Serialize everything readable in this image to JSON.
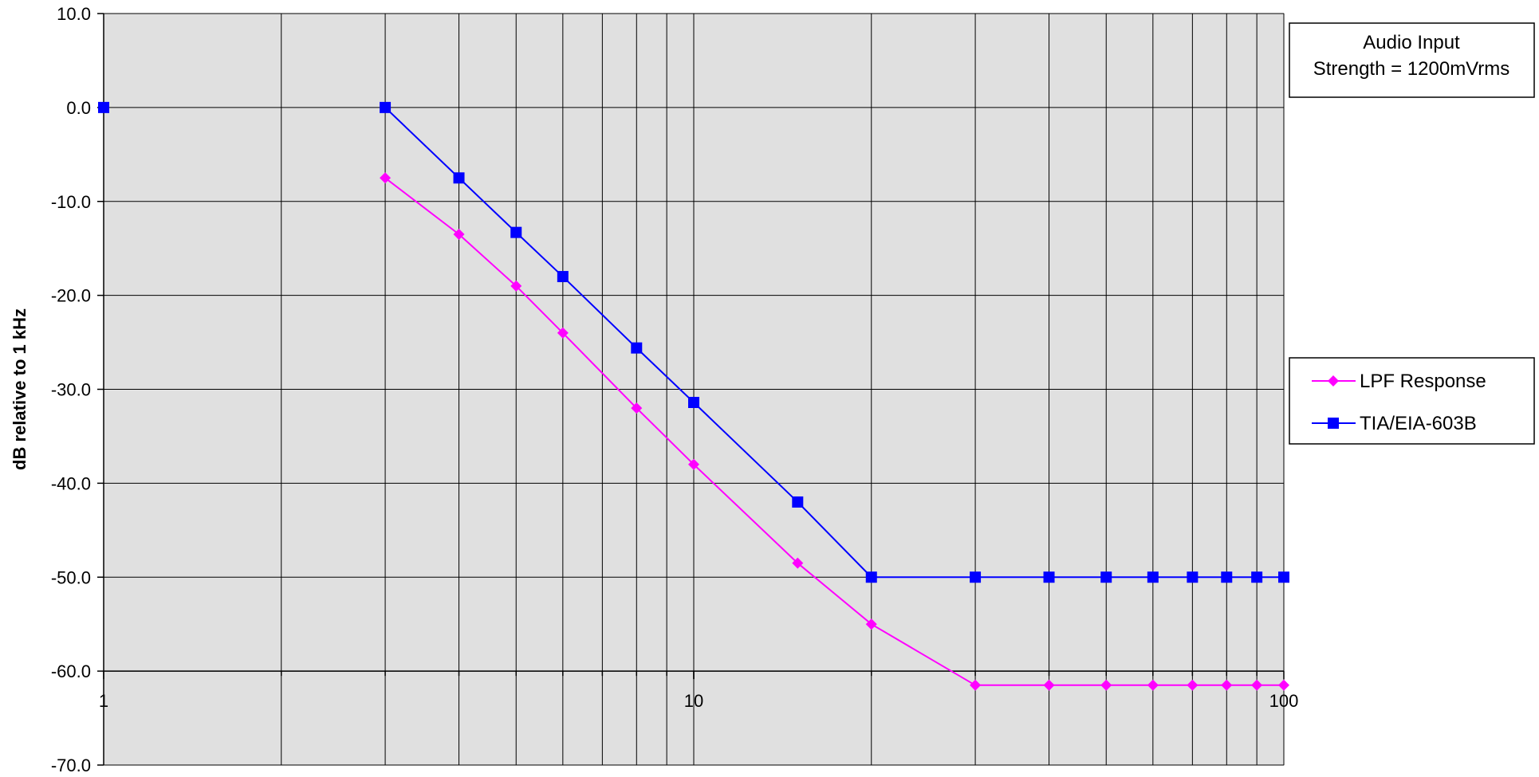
{
  "chart_data": {
    "type": "line",
    "xscale": "log",
    "xlim": [
      1,
      100
    ],
    "ylim": [
      -70,
      10
    ],
    "ylabel": "dB relative to 1 kHz",
    "xlabel": "",
    "y_ticks": [
      "10.0",
      "0.0",
      "-10.0",
      "-20.0",
      "-30.0",
      "-40.0",
      "-50.0",
      "-60.0",
      "-70.0"
    ],
    "x_ticks": [
      "1",
      "10",
      "100"
    ],
    "grid": true,
    "x_axis_crossing": -60,
    "annotation": [
      "Audio Input",
      "Strength = 1200mVrms"
    ],
    "legend_position": "right",
    "series": [
      {
        "name": "LPF Response",
        "color": "#ff00ff",
        "marker": "diamond",
        "points": [
          {
            "x": 3,
            "y": -7.5
          },
          {
            "x": 4,
            "y": -13.5
          },
          {
            "x": 5,
            "y": -19
          },
          {
            "x": 6,
            "y": -24
          },
          {
            "x": 8,
            "y": -32
          },
          {
            "x": 10,
            "y": -38
          },
          {
            "x": 15,
            "y": -48.5
          },
          {
            "x": 20,
            "y": -55
          },
          {
            "x": 30,
            "y": -61.5
          },
          {
            "x": 40,
            "y": -61.5
          },
          {
            "x": 50,
            "y": -61.5
          },
          {
            "x": 60,
            "y": -61.5
          },
          {
            "x": 70,
            "y": -61.5
          },
          {
            "x": 80,
            "y": -61.5
          },
          {
            "x": 90,
            "y": -61.5
          },
          {
            "x": 100,
            "y": -61.5
          }
        ]
      },
      {
        "name": "TIA/EIA-603B",
        "color": "#0000ff",
        "marker": "square",
        "points": [
          {
            "x": 1,
            "y": 0
          },
          {
            "x": 3,
            "y": 0
          },
          {
            "x": 4,
            "y": -7.5
          },
          {
            "x": 5,
            "y": -13.3
          },
          {
            "x": 6,
            "y": -18
          },
          {
            "x": 8,
            "y": -25.6
          },
          {
            "x": 10,
            "y": -31.4
          },
          {
            "x": 15,
            "y": -42
          },
          {
            "x": 20,
            "y": -50
          },
          {
            "x": 30,
            "y": -50
          },
          {
            "x": 40,
            "y": -50
          },
          {
            "x": 50,
            "y": -50
          },
          {
            "x": 60,
            "y": -50
          },
          {
            "x": 70,
            "y": -50
          },
          {
            "x": 80,
            "y": -50
          },
          {
            "x": 90,
            "y": -50
          },
          {
            "x": 100,
            "y": -50
          }
        ],
        "gap_after_first": true
      }
    ]
  }
}
